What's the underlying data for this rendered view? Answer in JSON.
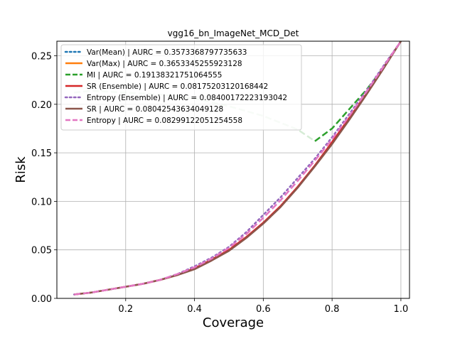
{
  "chart_data": {
    "type": "line",
    "title": "vgg16_bn_ImageNet_MCD_Det",
    "xlabel": "Coverage",
    "ylabel": "Risk",
    "xlim": [
      0.0,
      1.025
    ],
    "ylim": [
      0.0,
      0.265
    ],
    "xticks": [
      0.2,
      0.4,
      0.6,
      0.8,
      1.0
    ],
    "xtick_labels": [
      "0.2",
      "0.4",
      "0.6",
      "0.8",
      "1.0"
    ],
    "yticks": [
      0.0,
      0.05,
      0.1,
      0.15,
      0.2,
      0.25
    ],
    "ytick_labels": [
      "0.00",
      "0.05",
      "0.10",
      "0.15",
      "0.20",
      "0.25"
    ],
    "grid": true,
    "legend_position": "top-left",
    "series": [
      {
        "name": "Var(Mean) | AURC = 0.3573368797735633",
        "color": "#1f77b4",
        "style": "dotted",
        "width": 2.5,
        "alpha": 1,
        "points": [
          [
            1.0,
            0.265
          ]
        ]
      },
      {
        "name": "Var(Max) | AURC = 0.3653345255923128",
        "color": "#ff7f0e",
        "style": "solid",
        "width": 2.5,
        "alpha": 1,
        "points": [
          [
            1.0,
            0.265
          ]
        ]
      },
      {
        "name": "MI | AURC = 0.19138321751064555",
        "color": "#2ca02c",
        "style": "dashed",
        "width": 2.5,
        "segments": [
          {
            "alpha": 0.2,
            "points": [
              [
                0.05,
                0.212
              ],
              [
                0.1,
                0.214
              ],
              [
                0.2,
                0.212
              ],
              [
                0.3,
                0.21
              ],
              [
                0.4,
                0.206
              ],
              [
                0.5,
                0.198
              ],
              [
                0.6,
                0.188
              ],
              [
                0.7,
                0.174
              ],
              [
                0.75,
                0.162
              ]
            ]
          },
          {
            "alpha": 1,
            "points": [
              [
                0.75,
                0.162
              ],
              [
                0.8,
                0.175
              ],
              [
                0.85,
                0.195
              ],
              [
                0.9,
                0.215
              ],
              [
                0.95,
                0.238
              ],
              [
                1.0,
                0.265
              ]
            ]
          }
        ]
      },
      {
        "name": "SR (Ensemble) | AURC = 0.08175203120168442",
        "color": "#d62728",
        "style": "solid",
        "width": 2.5,
        "alpha": 1,
        "points": [
          [
            0.05,
            0.004
          ],
          [
            0.1,
            0.006
          ],
          [
            0.15,
            0.009
          ],
          [
            0.2,
            0.012
          ],
          [
            0.25,
            0.015
          ],
          [
            0.3,
            0.019
          ],
          [
            0.35,
            0.024
          ],
          [
            0.4,
            0.031
          ],
          [
            0.45,
            0.04
          ],
          [
            0.5,
            0.05
          ],
          [
            0.55,
            0.063
          ],
          [
            0.6,
            0.078
          ],
          [
            0.65,
            0.095
          ],
          [
            0.7,
            0.115
          ],
          [
            0.75,
            0.137
          ],
          [
            0.8,
            0.161
          ],
          [
            0.85,
            0.186
          ],
          [
            0.9,
            0.211
          ],
          [
            0.95,
            0.238
          ],
          [
            1.0,
            0.265
          ]
        ]
      },
      {
        "name": "Entropy (Ensemble) | AURC = 0.08400172223193042",
        "color": "#9467bd",
        "style": "dotted",
        "width": 2.5,
        "alpha": 1,
        "points": [
          [
            0.05,
            0.004
          ],
          [
            0.1,
            0.006
          ],
          [
            0.15,
            0.009
          ],
          [
            0.2,
            0.012
          ],
          [
            0.25,
            0.015
          ],
          [
            0.3,
            0.019
          ],
          [
            0.35,
            0.025
          ],
          [
            0.4,
            0.033
          ],
          [
            0.45,
            0.042
          ],
          [
            0.5,
            0.053
          ],
          [
            0.55,
            0.068
          ],
          [
            0.6,
            0.086
          ],
          [
            0.65,
            0.104
          ],
          [
            0.7,
            0.124
          ],
          [
            0.75,
            0.144
          ],
          [
            0.8,
            0.166
          ],
          [
            0.85,
            0.19
          ],
          [
            0.9,
            0.214
          ],
          [
            0.95,
            0.24
          ],
          [
            1.0,
            0.265
          ]
        ]
      },
      {
        "name": "SR | AURC = 0.0804254363404912​8",
        "color": "#8c564b",
        "style": "solid",
        "width": 2.5,
        "alpha": 1,
        "points": [
          [
            0.05,
            0.004
          ],
          [
            0.1,
            0.006
          ],
          [
            0.15,
            0.009
          ],
          [
            0.2,
            0.012
          ],
          [
            0.25,
            0.015
          ],
          [
            0.3,
            0.019
          ],
          [
            0.35,
            0.024
          ],
          [
            0.4,
            0.03
          ],
          [
            0.45,
            0.039
          ],
          [
            0.5,
            0.049
          ],
          [
            0.55,
            0.062
          ],
          [
            0.6,
            0.077
          ],
          [
            0.65,
            0.094
          ],
          [
            0.7,
            0.114
          ],
          [
            0.75,
            0.136
          ],
          [
            0.8,
            0.159
          ],
          [
            0.85,
            0.184
          ],
          [
            0.9,
            0.21
          ],
          [
            0.95,
            0.237
          ],
          [
            1.0,
            0.265
          ]
        ]
      },
      {
        "name": "Entropy | AURC = 0.08299122051254558",
        "color": "#e377c2",
        "style": "dashed",
        "width": 2.5,
        "alpha": 1,
        "points": [
          [
            0.05,
            0.004
          ],
          [
            0.1,
            0.006
          ],
          [
            0.15,
            0.009
          ],
          [
            0.2,
            0.012
          ],
          [
            0.25,
            0.015
          ],
          [
            0.3,
            0.019
          ],
          [
            0.35,
            0.025
          ],
          [
            0.4,
            0.032
          ],
          [
            0.45,
            0.041
          ],
          [
            0.5,
            0.052
          ],
          [
            0.55,
            0.066
          ],
          [
            0.6,
            0.083
          ],
          [
            0.65,
            0.101
          ],
          [
            0.7,
            0.121
          ],
          [
            0.75,
            0.142
          ],
          [
            0.8,
            0.164
          ],
          [
            0.85,
            0.188
          ],
          [
            0.9,
            0.213
          ],
          [
            0.95,
            0.239
          ],
          [
            1.0,
            0.265
          ]
        ]
      }
    ]
  }
}
